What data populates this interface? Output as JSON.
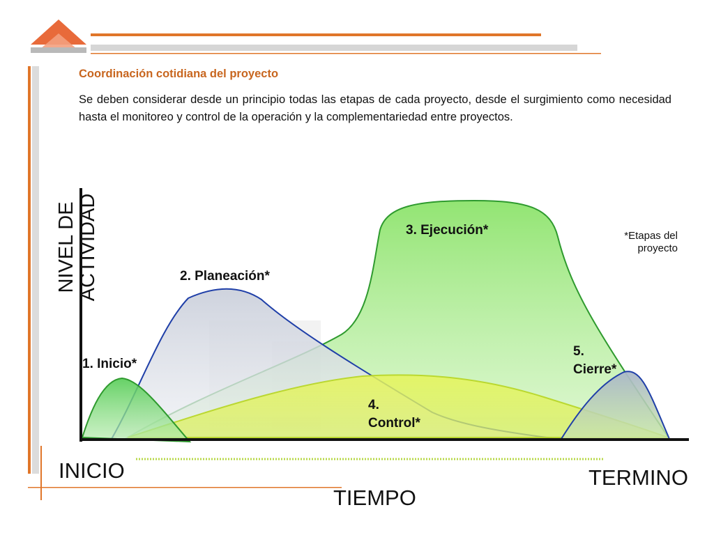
{
  "header": {
    "subtitle": "Coordinación cotidiana del proyecto",
    "description": "Se deben considerar desde un principio todas las etapas de cada proyecto, desde el surgimiento como necesidad hasta el monitoreo y control de la operación y la complementariedad entre proyectos."
  },
  "diagram": {
    "y_axis_label": "NIVEL DE ACTIVIDAD",
    "x_axis_label": "TIEMPO",
    "x_start_label": "INICIO",
    "x_end_label": "TERMINO",
    "note": "*Etapas del proyecto",
    "stages": [
      {
        "label": "1. Inicio*"
      },
      {
        "label": "2.  Planeación*"
      },
      {
        "label": "3.  Ejecución*"
      },
      {
        "label": "4. Control*"
      },
      {
        "label": "5. Cierre*"
      }
    ]
  },
  "colors": {
    "accent_orange": "#e0762a",
    "subtitle_orange": "#c8661f",
    "stage_green": "#2e9a2e",
    "stage_blue": "#1f3fa8",
    "control_yellow": "#d8f23a"
  }
}
